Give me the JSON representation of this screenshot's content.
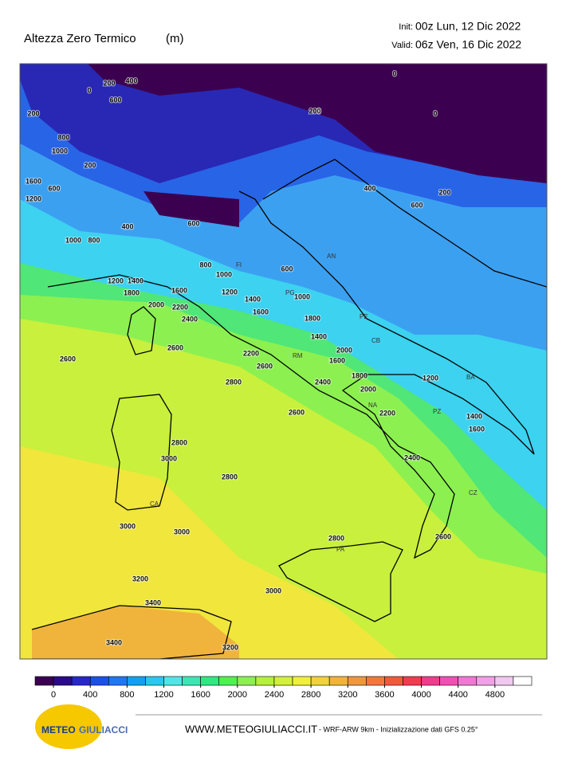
{
  "header": {
    "title": "Altezza Zero Termico",
    "unit": "(m)",
    "init_label": "Init:",
    "init": "00z Lun, 12 Dic 2022",
    "valid_label": "Valid:",
    "valid": "06z Ven, 16 Dic 2022"
  },
  "map": {
    "contour_labels": [
      "200",
      "400",
      "600",
      "0",
      "200",
      "800",
      "1000",
      "600",
      "1200",
      "1600",
      "200",
      "0",
      "200",
      "400",
      "600",
      "800",
      "1000",
      "1200",
      "1400",
      "1600",
      "1800",
      "2000",
      "2200",
      "2400",
      "2600",
      "2600",
      "2800",
      "2600",
      "2800",
      "3000",
      "2800",
      "3000",
      "3000",
      "3200",
      "3400",
      "3400",
      "3200",
      "3000",
      "2800",
      "2400",
      "2600",
      "2200",
      "2000",
      "1800",
      "1600",
      "1400",
      "1200",
      "1000",
      "800",
      "600",
      "1000",
      "1400",
      "1600",
      "1800",
      "2000",
      "2200",
      "2400",
      "2600",
      "1200",
      "1400",
      "1600",
      "0",
      "0",
      "400",
      "600",
      "200"
    ],
    "city_labels": [
      "FI",
      "PG",
      "AN",
      "RM",
      "PE",
      "CB",
      "NA",
      "PZ",
      "BA",
      "CZ",
      "PA",
      "CA"
    ]
  },
  "colorbar": {
    "ticks": [
      0,
      400,
      800,
      1200,
      1600,
      2000,
      2400,
      2800,
      3200,
      3600,
      4000,
      4400,
      4800
    ],
    "colors": [
      "#3c0050",
      "#2a0a8a",
      "#2828c8",
      "#1e50e6",
      "#1e78f0",
      "#14a0f0",
      "#28c8f0",
      "#50e6e6",
      "#3ce6b4",
      "#32e682",
      "#50f050",
      "#8cf050",
      "#b4f03c",
      "#d2f03c",
      "#f0f03c",
      "#f0d23c",
      "#f0b43c",
      "#f0963c",
      "#f0783c",
      "#f05a3c",
      "#f03c50",
      "#f03c8c",
      "#f050b4",
      "#f078d2",
      "#f0a0e6",
      "#f0c8f0",
      "#ffffff"
    ]
  },
  "footer": {
    "logo_a": "METEO",
    "logo_b": "GIULIACCI",
    "site": "WWW.METEOGIULIACCI.IT",
    "model": " - WRF-ARW 9km - Inizializzazione dati GFS 0.25°"
  }
}
